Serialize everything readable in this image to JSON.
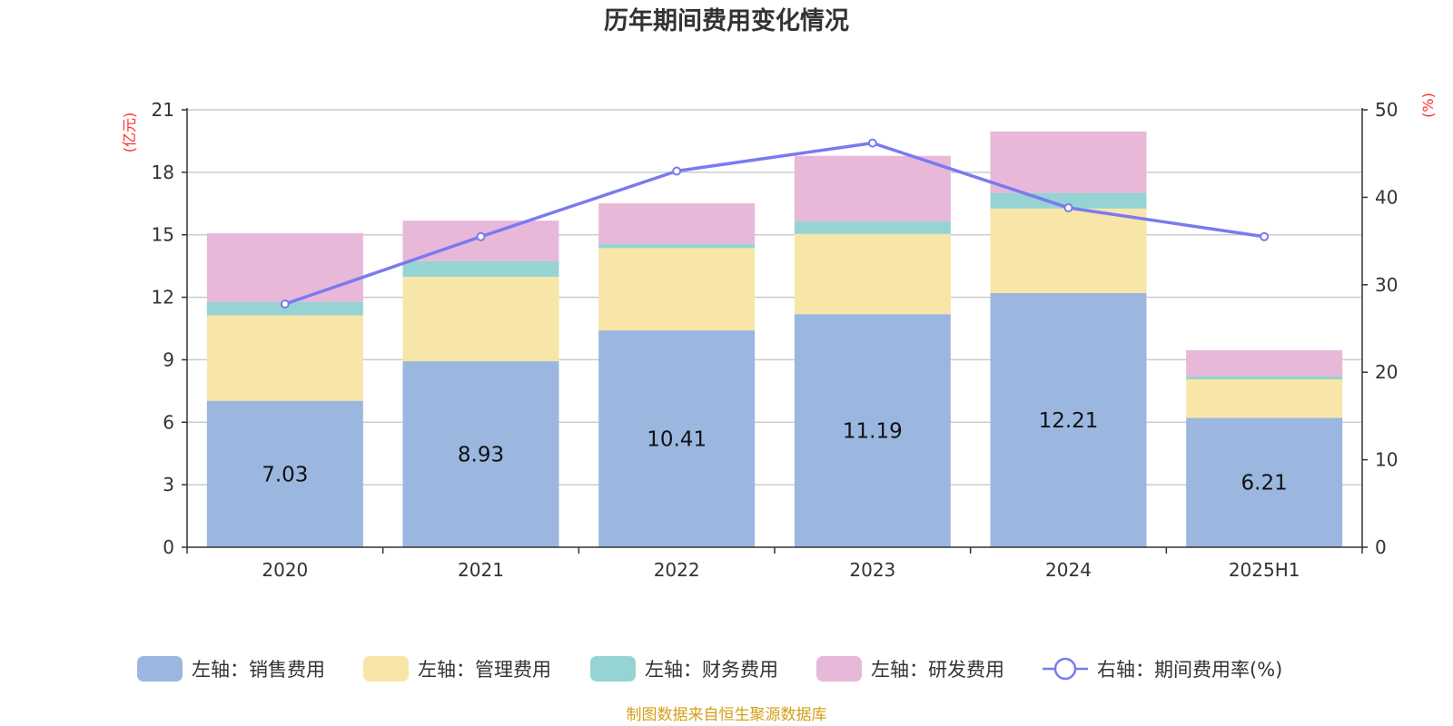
{
  "chart_data": {
    "type": "bar",
    "title": "历年期间费用变化情况",
    "categories": [
      "2020",
      "2021",
      "2022",
      "2023",
      "2024",
      "2025H1"
    ],
    "left_axis": {
      "unit": "(亿元)",
      "ylim": [
        0,
        21
      ],
      "ticks": [
        0,
        3,
        6,
        9,
        12,
        15,
        18,
        21
      ]
    },
    "right_axis": {
      "unit": "(%)",
      "ylim": [
        0,
        50
      ],
      "ticks": [
        0,
        10,
        20,
        30,
        40,
        50
      ]
    },
    "grid": true,
    "legend_position": "bottom",
    "stacked": true,
    "series": [
      {
        "name": "左轴：销售费用",
        "axis": "left",
        "type": "bar",
        "color": "#9bb7e0",
        "values": [
          7.03,
          8.93,
          10.41,
          11.19,
          12.21,
          6.21
        ],
        "show_labels": true
      },
      {
        "name": "左轴：管理费用",
        "axis": "left",
        "type": "bar",
        "color": "#f8e6a8",
        "values": [
          4.1,
          4.05,
          3.95,
          3.85,
          4.05,
          1.85
        ]
      },
      {
        "name": "左轴：财务费用",
        "axis": "left",
        "type": "bar",
        "color": "#96d3d3",
        "values": [
          0.65,
          0.75,
          0.2,
          0.6,
          0.75,
          0.15
        ]
      },
      {
        "name": "左轴：研发费用",
        "axis": "left",
        "type": "bar",
        "color": "#e8b8d9",
        "values": [
          3.3,
          1.95,
          1.95,
          3.15,
          2.95,
          1.25
        ]
      },
      {
        "name": "右轴：期间费用率(%)",
        "axis": "right",
        "type": "line",
        "color": "#7a7af0",
        "values": [
          27.8,
          35.5,
          43.0,
          46.2,
          38.8,
          35.5
        ]
      }
    ],
    "source_note": "制图数据来自恒生聚源数据库"
  }
}
